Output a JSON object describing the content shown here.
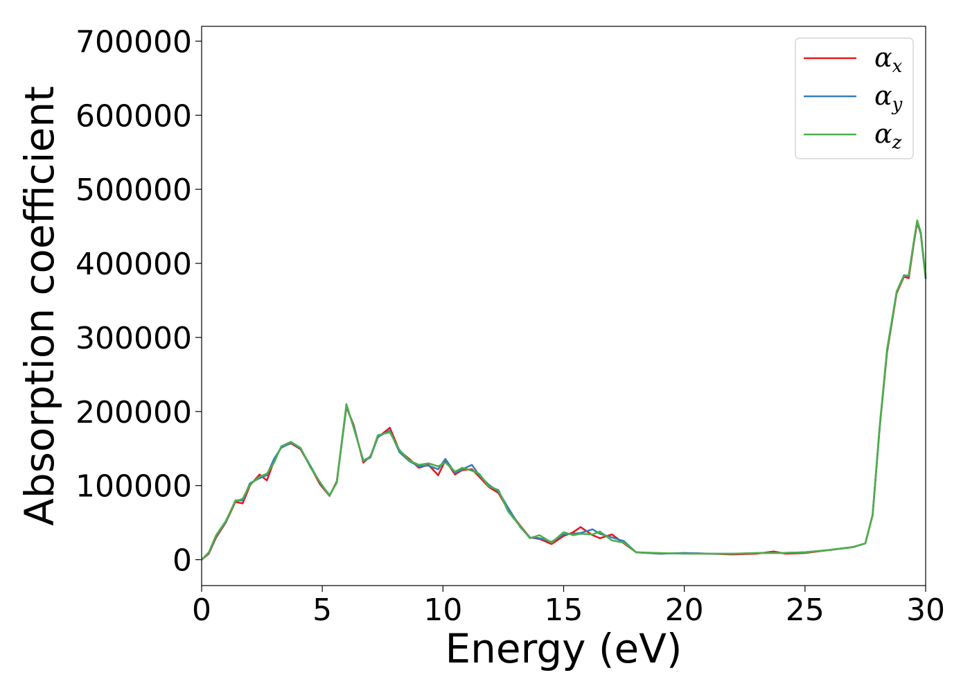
{
  "chart_data": {
    "type": "line",
    "xlabel": "Energy (eV)",
    "ylabel": "Absorption coefficient",
    "xlim": [
      0,
      30
    ],
    "ylim": [
      -35000,
      720000
    ],
    "xticks": [
      0,
      5,
      10,
      15,
      20,
      25,
      30
    ],
    "yticks": [
      0,
      100000,
      200000,
      300000,
      400000,
      500000,
      600000,
      700000
    ],
    "grid": false,
    "legend_position": "top-right",
    "series": [
      {
        "name": "α_x",
        "label_main": "α",
        "label_sub": "x",
        "color": "#e41a1c",
        "points": [
          [
            0,
            0
          ],
          [
            0.3,
            8000
          ],
          [
            0.6,
            30000
          ],
          [
            1.0,
            50000
          ],
          [
            1.4,
            78000
          ],
          [
            1.7,
            76000
          ],
          [
            2.0,
            100000
          ],
          [
            2.4,
            115000
          ],
          [
            2.7,
            107000
          ],
          [
            3.0,
            133000
          ],
          [
            3.3,
            152000
          ],
          [
            3.7,
            157000
          ],
          [
            4.1,
            149000
          ],
          [
            4.5,
            126000
          ],
          [
            4.9,
            102000
          ],
          [
            5.3,
            86000
          ],
          [
            5.6,
            106000
          ],
          [
            6.0,
            206000
          ],
          [
            6.3,
            182000
          ],
          [
            6.7,
            131000
          ],
          [
            7.0,
            140000
          ],
          [
            7.3,
            165000
          ],
          [
            7.8,
            178000
          ],
          [
            8.2,
            147000
          ],
          [
            8.6,
            136000
          ],
          [
            9.0,
            124000
          ],
          [
            9.4,
            128000
          ],
          [
            9.8,
            114000
          ],
          [
            10.1,
            134000
          ],
          [
            10.5,
            115000
          ],
          [
            10.8,
            121000
          ],
          [
            11.2,
            122000
          ],
          [
            11.5,
            112000
          ],
          [
            11.9,
            98000
          ],
          [
            12.3,
            90000
          ],
          [
            12.7,
            67000
          ],
          [
            13.2,
            46000
          ],
          [
            13.6,
            30000
          ],
          [
            14.0,
            28000
          ],
          [
            14.5,
            21000
          ],
          [
            15.0,
            32000
          ],
          [
            15.4,
            37000
          ],
          [
            15.7,
            44000
          ],
          [
            16.2,
            33000
          ],
          [
            16.5,
            29000
          ],
          [
            17.0,
            34000
          ],
          [
            17.5,
            22000
          ],
          [
            18.0,
            10000
          ],
          [
            19.0,
            8000
          ],
          [
            20.0,
            9000
          ],
          [
            21.0,
            8000
          ],
          [
            22.0,
            7000
          ],
          [
            23.0,
            8000
          ],
          [
            23.7,
            11000
          ],
          [
            24.2,
            8000
          ],
          [
            25.0,
            9000
          ],
          [
            26.0,
            13000
          ],
          [
            27.0,
            17000
          ],
          [
            27.5,
            22000
          ],
          [
            27.8,
            60000
          ],
          [
            28.1,
            180000
          ],
          [
            28.4,
            280000
          ],
          [
            28.8,
            360000
          ],
          [
            29.1,
            382000
          ],
          [
            29.3,
            380000
          ],
          [
            29.5,
            425000
          ],
          [
            29.65,
            455000
          ],
          [
            29.8,
            440000
          ],
          [
            30.0,
            380000
          ]
        ]
      },
      {
        "name": "α_y",
        "label_main": "α",
        "label_sub": "y",
        "color": "#377eb8",
        "points": [
          [
            0,
            0
          ],
          [
            0.3,
            9000
          ],
          [
            0.6,
            32000
          ],
          [
            1.0,
            51000
          ],
          [
            1.4,
            80000
          ],
          [
            1.7,
            80000
          ],
          [
            2.0,
            103000
          ],
          [
            2.4,
            110000
          ],
          [
            2.7,
            114000
          ],
          [
            3.0,
            136000
          ],
          [
            3.3,
            151000
          ],
          [
            3.7,
            158000
          ],
          [
            4.1,
            150000
          ],
          [
            4.5,
            127000
          ],
          [
            4.9,
            104000
          ],
          [
            5.3,
            87000
          ],
          [
            5.6,
            104000
          ],
          [
            6.0,
            208000
          ],
          [
            6.3,
            180000
          ],
          [
            6.7,
            133000
          ],
          [
            7.0,
            138000
          ],
          [
            7.3,
            166000
          ],
          [
            7.8,
            174000
          ],
          [
            8.2,
            145000
          ],
          [
            8.6,
            133000
          ],
          [
            9.0,
            126000
          ],
          [
            9.4,
            127000
          ],
          [
            9.8,
            122000
          ],
          [
            10.1,
            136000
          ],
          [
            10.5,
            117000
          ],
          [
            10.8,
            122000
          ],
          [
            11.2,
            128000
          ],
          [
            11.5,
            114000
          ],
          [
            11.9,
            101000
          ],
          [
            12.3,
            92000
          ],
          [
            12.7,
            70000
          ],
          [
            13.2,
            44000
          ],
          [
            13.6,
            30000
          ],
          [
            14.0,
            29000
          ],
          [
            14.5,
            24000
          ],
          [
            15.0,
            34000
          ],
          [
            15.4,
            35000
          ],
          [
            15.7,
            36000
          ],
          [
            16.2,
            41000
          ],
          [
            16.5,
            35000
          ],
          [
            17.0,
            30000
          ],
          [
            17.5,
            25000
          ],
          [
            18.0,
            10000
          ],
          [
            19.0,
            8000
          ],
          [
            20.0,
            9000
          ],
          [
            21.0,
            8000
          ],
          [
            22.0,
            8000
          ],
          [
            23.0,
            9000
          ],
          [
            24.0,
            9000
          ],
          [
            25.0,
            10000
          ],
          [
            26.0,
            13000
          ],
          [
            27.0,
            17000
          ],
          [
            27.5,
            22000
          ],
          [
            27.8,
            60000
          ],
          [
            28.1,
            180000
          ],
          [
            28.4,
            282000
          ],
          [
            28.8,
            362000
          ],
          [
            29.1,
            384000
          ],
          [
            29.3,
            383000
          ],
          [
            29.5,
            427000
          ],
          [
            29.65,
            457000
          ],
          [
            29.8,
            440000
          ],
          [
            30.0,
            380000
          ]
        ]
      },
      {
        "name": "α_z",
        "label_main": "α",
        "label_sub": "z",
        "color": "#4daf4a",
        "points": [
          [
            0,
            0
          ],
          [
            0.3,
            10000
          ],
          [
            0.6,
            33000
          ],
          [
            1.0,
            52000
          ],
          [
            1.4,
            79000
          ],
          [
            1.7,
            82000
          ],
          [
            2.0,
            101000
          ],
          [
            2.4,
            112000
          ],
          [
            2.7,
            116000
          ],
          [
            3.0,
            131000
          ],
          [
            3.3,
            153000
          ],
          [
            3.7,
            159000
          ],
          [
            4.1,
            151000
          ],
          [
            4.5,
            125000
          ],
          [
            4.9,
            105000
          ],
          [
            5.3,
            86000
          ],
          [
            5.6,
            105000
          ],
          [
            6.0,
            210000
          ],
          [
            6.3,
            178000
          ],
          [
            6.7,
            134000
          ],
          [
            7.0,
            139000
          ],
          [
            7.3,
            168000
          ],
          [
            7.8,
            172000
          ],
          [
            8.2,
            148000
          ],
          [
            8.6,
            134000
          ],
          [
            9.0,
            128000
          ],
          [
            9.4,
            130000
          ],
          [
            9.8,
            126000
          ],
          [
            10.1,
            131000
          ],
          [
            10.5,
            119000
          ],
          [
            10.8,
            124000
          ],
          [
            11.2,
            120000
          ],
          [
            11.5,
            116000
          ],
          [
            11.9,
            99000
          ],
          [
            12.3,
            94000
          ],
          [
            12.7,
            65000
          ],
          [
            13.2,
            45000
          ],
          [
            13.6,
            29000
          ],
          [
            14.0,
            33000
          ],
          [
            14.5,
            23000
          ],
          [
            15.0,
            37000
          ],
          [
            15.4,
            33000
          ],
          [
            15.7,
            35000
          ],
          [
            16.2,
            34000
          ],
          [
            16.5,
            38000
          ],
          [
            17.0,
            26000
          ],
          [
            17.5,
            23000
          ],
          [
            18.0,
            10000
          ],
          [
            19.0,
            9000
          ],
          [
            20.0,
            8000
          ],
          [
            21.0,
            8000
          ],
          [
            22.0,
            8000
          ],
          [
            23.0,
            9000
          ],
          [
            24.0,
            9000
          ],
          [
            25.0,
            10000
          ],
          [
            26.0,
            13000
          ],
          [
            27.0,
            17000
          ],
          [
            27.5,
            22000
          ],
          [
            27.8,
            60000
          ],
          [
            28.1,
            182000
          ],
          [
            28.4,
            284000
          ],
          [
            28.8,
            362000
          ],
          [
            29.1,
            383000
          ],
          [
            29.3,
            384000
          ],
          [
            29.5,
            428000
          ],
          [
            29.65,
            458000
          ],
          [
            29.8,
            442000
          ],
          [
            30.0,
            382000
          ]
        ]
      }
    ]
  }
}
